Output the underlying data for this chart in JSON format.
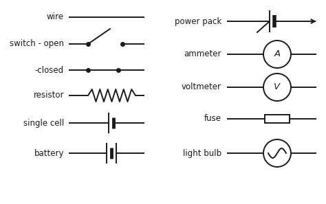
{
  "bg_color": "#ffffff",
  "line_color": "#1a1a1a",
  "line_width": 1.4,
  "dot_size": 4,
  "labels": {
    "wire": "wire",
    "switch_open": "switch - open",
    "closed": "-closed",
    "resistor": "resistor",
    "single_cell": "single cell",
    "battery": "battery",
    "power_pack": "power pack",
    "ammeter": "ammeter",
    "voltmeter": "voltmeter",
    "fuse": "fuse",
    "light_bulb": "light bulb"
  },
  "font_size": 8.5,
  "font_color": "#1a1a1a",
  "figsize": [
    4.74,
    2.97
  ],
  "dpi": 100
}
